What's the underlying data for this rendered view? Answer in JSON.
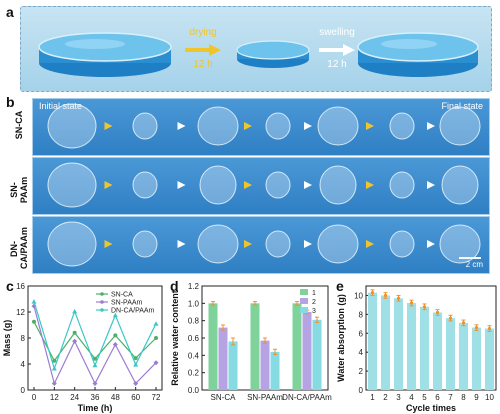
{
  "panel_labels": {
    "a": "a",
    "b": "b",
    "c": "c",
    "d": "d",
    "e": "e"
  },
  "panel_a": {
    "step1": {
      "label": "drying",
      "duration": "12 h"
    },
    "step2": {
      "label": "swelling",
      "duration": "12 h"
    }
  },
  "panel_b": {
    "initial": "Initial state",
    "final": "Final state",
    "rows": [
      "SN-CA",
      "SN-PAAm",
      "DN-CA/PAAm"
    ],
    "scale": "2 cm"
  },
  "colors": {
    "sn_ca": "#4caf6a",
    "sn_paam": "#9a7dd0",
    "dn": "#3cc7c7",
    "bar1": "#7fd39a",
    "bar2": "#b6a3e3",
    "bar3": "#86dbe2",
    "bar_e": "#9fe0e6",
    "err": "#f0922c"
  },
  "chart_data": [
    {
      "type": "line",
      "xlabel": "Time (h)",
      "ylabel": "Mass (g)",
      "x": [
        0,
        12,
        24,
        36,
        48,
        60,
        72
      ],
      "xticks": [
        "0",
        "12",
        "24",
        "36",
        "48",
        "60",
        "72"
      ],
      "yticks": [
        "0",
        "4",
        "8",
        "12",
        "16"
      ],
      "ylim": [
        0,
        16
      ],
      "series": [
        {
          "name": "SN-CA",
          "values": [
            10.5,
            4.5,
            8.8,
            4.8,
            8.4,
            4.9,
            8.0
          ]
        },
        {
          "name": "SN-PAAm",
          "values": [
            12.9,
            1.0,
            7.5,
            1.0,
            7.0,
            1.0,
            4.2
          ]
        },
        {
          "name": "DN-CA/PAAm",
          "values": [
            13.6,
            3.3,
            12.1,
            3.8,
            11.5,
            3.9,
            10.2
          ]
        }
      ]
    },
    {
      "type": "bar",
      "ylabel": "Relative water content",
      "categories": [
        "SN-CA",
        "SN-PAAm",
        "DN-CA/PAAm"
      ],
      "yticks": [
        "0.0",
        "0.2",
        "0.4",
        "0.6",
        "0.8",
        "1.0",
        "1.2"
      ],
      "ylim": [
        0,
        1.2
      ],
      "series": [
        {
          "name": "1",
          "values": [
            1.0,
            1.0,
            1.0
          ],
          "errors": [
            0.02,
            0.02,
            0.02
          ]
        },
        {
          "name": "2",
          "values": [
            0.72,
            0.57,
            0.9
          ],
          "errors": [
            0.03,
            0.03,
            0.02
          ]
        },
        {
          "name": "3",
          "values": [
            0.56,
            0.44,
            0.81
          ],
          "errors": [
            0.04,
            0.03,
            0.03
          ]
        }
      ]
    },
    {
      "type": "bar",
      "xlabel": "Cycle times",
      "ylabel": "Water absorption (g)",
      "categories": [
        "1",
        "2",
        "3",
        "4",
        "5",
        "6",
        "7",
        "8",
        "9",
        "10"
      ],
      "yticks": [
        "0",
        "2",
        "4",
        "6",
        "8",
        "10"
      ],
      "ylim": [
        0,
        11
      ],
      "values": [
        10.3,
        10.0,
        9.7,
        9.2,
        8.8,
        8.2,
        7.6,
        7.1,
        6.6,
        6.5
      ],
      "errors": [
        0.3,
        0.3,
        0.3,
        0.3,
        0.3,
        0.3,
        0.3,
        0.3,
        0.3,
        0.3
      ]
    }
  ]
}
